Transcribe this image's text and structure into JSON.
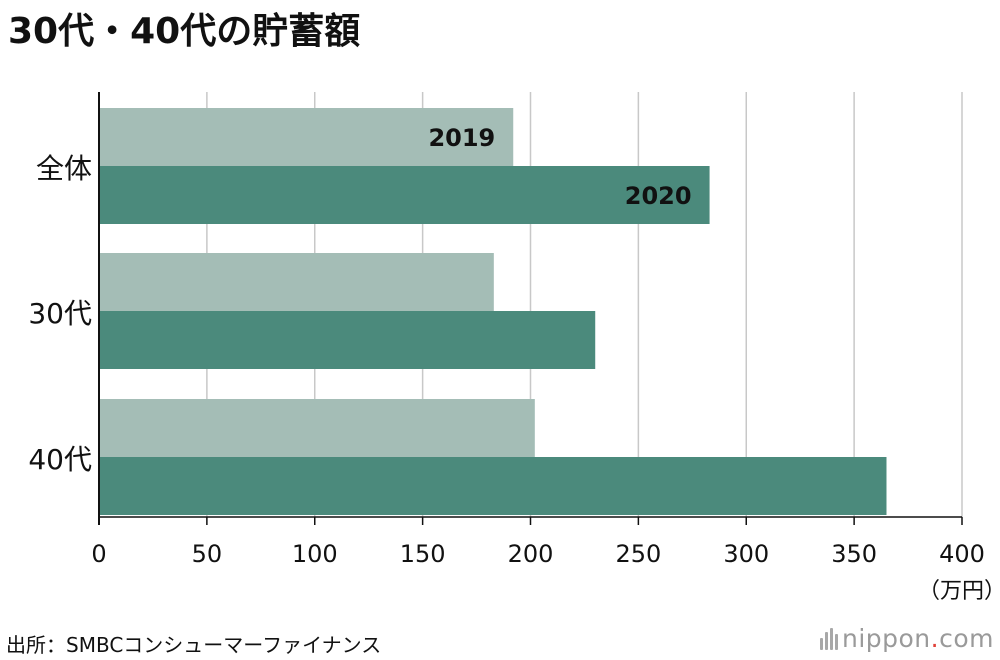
{
  "chart_data": {
    "type": "bar",
    "orientation": "horizontal",
    "title": "30代・40代の貯蓄額",
    "categories": [
      "全体",
      "30代",
      "40代"
    ],
    "series": [
      {
        "name": "2019",
        "values": [
          192,
          183,
          202
        ],
        "color": "#a4bdb6"
      },
      {
        "name": "2020",
        "values": [
          283,
          230,
          365
        ],
        "color": "#4b8a7c"
      }
    ],
    "xlim": [
      0,
      400
    ],
    "xticks": [
      0,
      50,
      100,
      150,
      200,
      250,
      300,
      350,
      400
    ],
    "xunit": "（万円）",
    "grid": true,
    "legend": "inline labels on first category bars"
  },
  "footer": {
    "source": "出所：SMBCコンシューマーファイナンス",
    "brand_name": "nippon",
    "brand_dot": ".",
    "brand_tld": "com"
  }
}
